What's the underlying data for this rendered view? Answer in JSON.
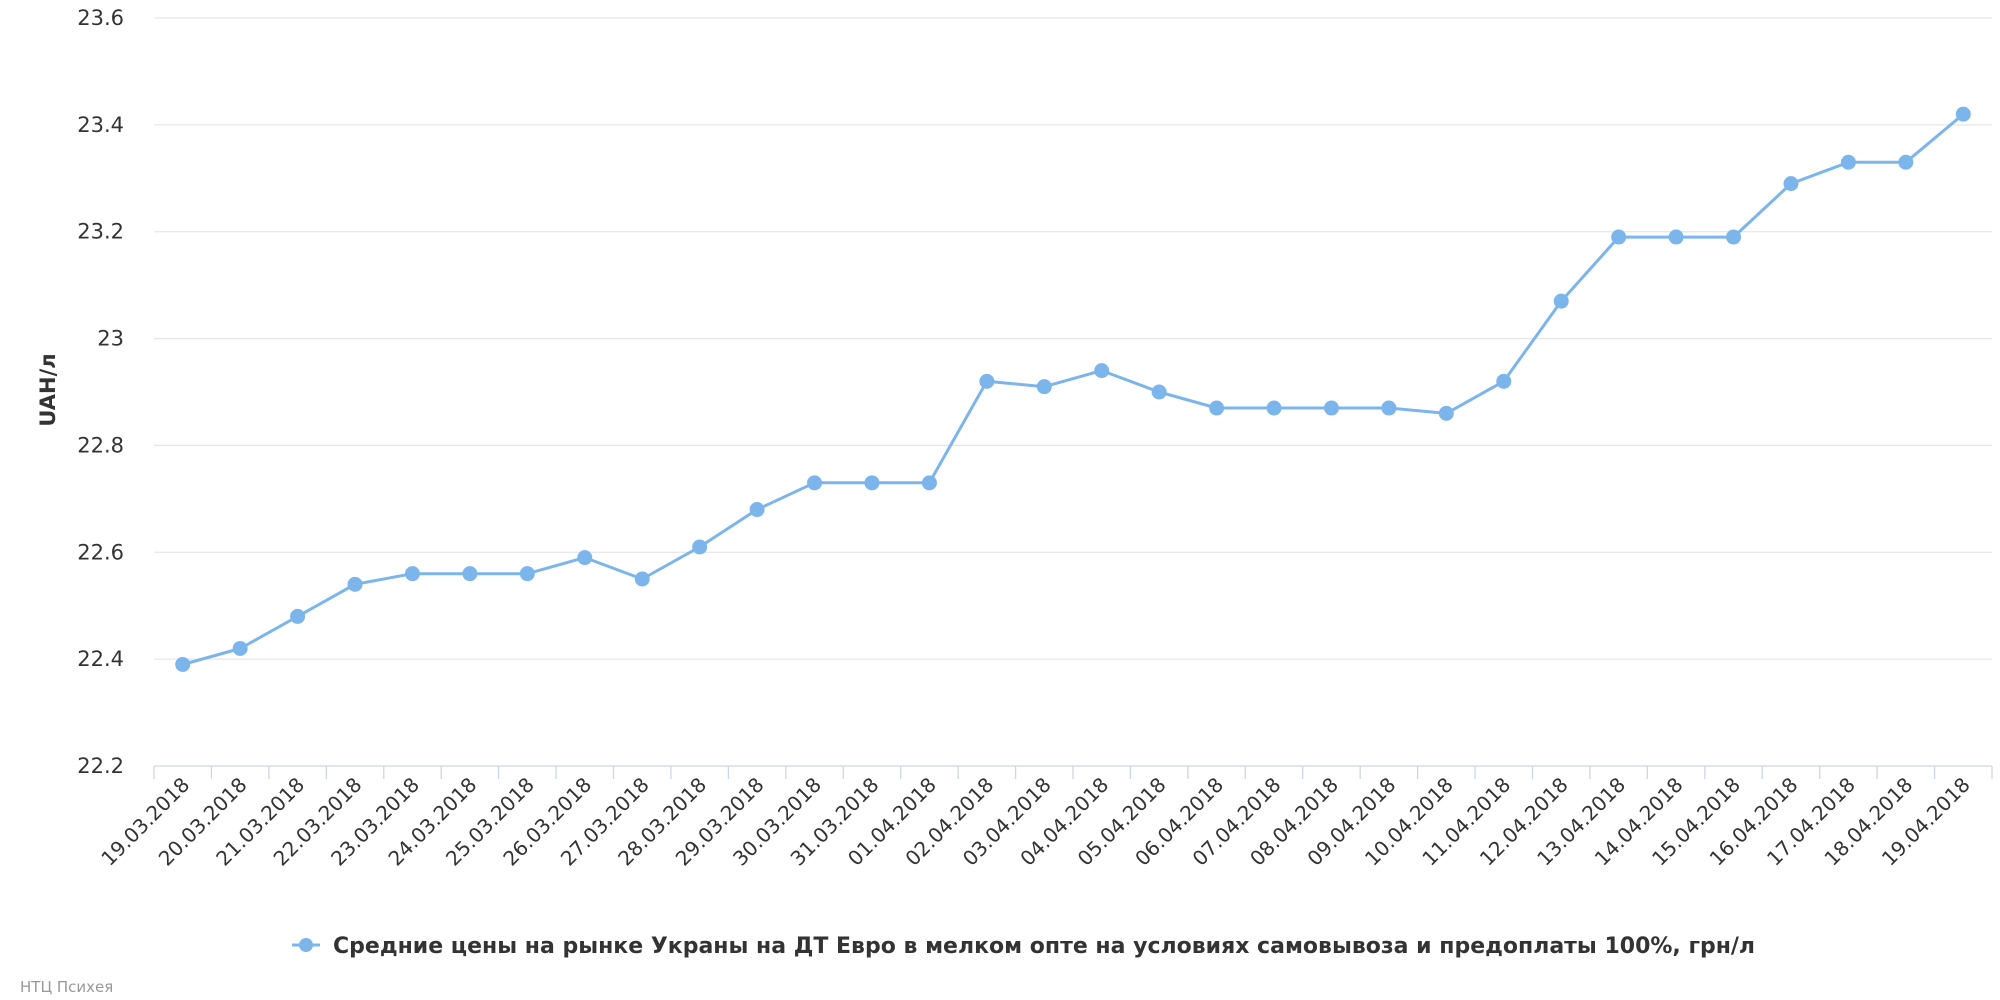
{
  "chart_data": {
    "type": "line",
    "title": "",
    "xlabel": "",
    "ylabel": "UAH/л",
    "ylim": [
      22.2,
      23.6
    ],
    "yticks": [
      "22.2",
      "22.4",
      "22.6",
      "22.8",
      "23",
      "23.2",
      "23.4",
      "23.6"
    ],
    "grid": true,
    "legend_position": "bottom-center",
    "categories": [
      "19.03.2018",
      "20.03.2018",
      "21.03.2018",
      "22.03.2018",
      "23.03.2018",
      "24.03.2018",
      "25.03.2018",
      "26.03.2018",
      "27.03.2018",
      "28.03.2018",
      "29.03.2018",
      "30.03.2018",
      "31.03.2018",
      "01.04.2018",
      "02.04.2018",
      "03.04.2018",
      "04.04.2018",
      "05.04.2018",
      "06.04.2018",
      "07.04.2018",
      "08.04.2018",
      "09.04.2018",
      "10.04.2018",
      "11.04.2018",
      "12.04.2018",
      "13.04.2018",
      "14.04.2018",
      "15.04.2018",
      "16.04.2018",
      "17.04.2018",
      "18.04.2018",
      "19.04.2018"
    ],
    "series": [
      {
        "name": "Средние цены на рынке Украны на ДТ Евро в мелком опте на условиях самовывоза и предоплаты 100%, грн/л",
        "color": "#7cb5ec",
        "values": [
          22.39,
          22.42,
          22.48,
          22.54,
          22.56,
          22.56,
          22.56,
          22.59,
          22.55,
          22.61,
          22.68,
          22.73,
          22.73,
          22.73,
          22.92,
          22.91,
          22.94,
          22.9,
          22.87,
          22.87,
          22.87,
          22.87,
          22.86,
          22.92,
          23.07,
          23.19,
          23.19,
          23.19,
          23.29,
          23.33,
          23.33,
          23.42
        ]
      }
    ]
  },
  "credit": "НТЦ Психея"
}
